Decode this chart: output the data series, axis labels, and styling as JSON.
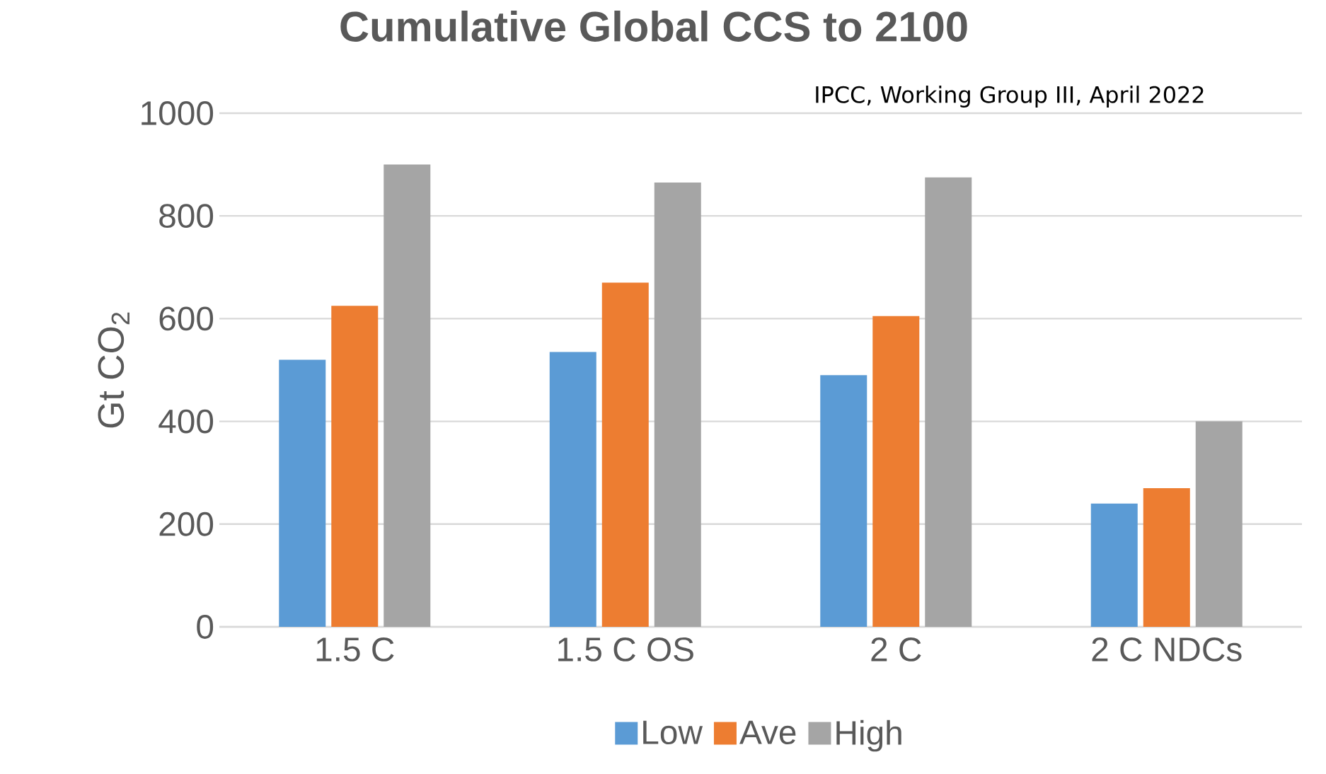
{
  "chart_data": {
    "type": "bar",
    "title": "Cumulative Global CCS to 2100",
    "ylabel": "Gt CO$_{2}$",
    "categories": [
      "1.5 C",
      "1.5  C OS",
      "2 C",
      "2 C NDCs"
    ],
    "series": [
      {
        "name": "Low",
        "color": "#5b9bd5",
        "values": [
          520,
          535,
          490,
          240
        ]
      },
      {
        "name": "Ave",
        "color": "#ed7d31",
        "values": [
          625,
          670,
          605,
          270
        ]
      },
      {
        "name": "High",
        "color": "#a5a5a5",
        "values": [
          900,
          865,
          875,
          400
        ]
      }
    ],
    "ylim": [
      0,
      1000
    ],
    "yticks": [
      0,
      200,
      400,
      600,
      800,
      1000
    ],
    "grid": "y",
    "legend": "bottom",
    "annotations": [
      "IPCC, Working Group III, April 2022"
    ]
  }
}
